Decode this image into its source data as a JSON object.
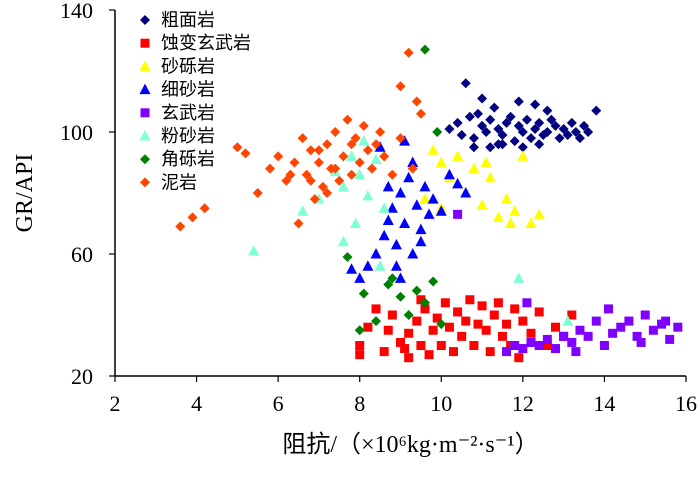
{
  "chart_data": {
    "type": "scatter",
    "title": "",
    "xlabel": "阻抗/（×10⁶kg·m⁻²·s⁻¹）",
    "ylabel": "GR/API",
    "xlim": [
      2,
      16
    ],
    "ylim": [
      20,
      140
    ],
    "xticks": [
      2,
      4,
      6,
      8,
      10,
      12,
      14,
      16
    ],
    "yticks": [
      20,
      60,
      100,
      140
    ],
    "legend_position": "top-left",
    "series": [
      {
        "name": "粗面岩",
        "color": "#000080",
        "marker": "diamond",
        "points": [
          [
            10.2,
            101
          ],
          [
            10.4,
            103
          ],
          [
            10.5,
            99
          ],
          [
            10.6,
            116
          ],
          [
            10.7,
            105
          ],
          [
            10.8,
            98
          ],
          [
            10.9,
            106
          ],
          [
            11.0,
            102
          ],
          [
            11.1,
            100
          ],
          [
            11.2,
            104
          ],
          [
            11.3,
            108
          ],
          [
            11.4,
            101
          ],
          [
            11.5,
            99
          ],
          [
            11.6,
            103
          ],
          [
            11.7,
            105
          ],
          [
            11.8,
            97
          ],
          [
            11.9,
            102
          ],
          [
            12.0,
            100
          ],
          [
            12.1,
            104
          ],
          [
            12.2,
            98
          ],
          [
            12.3,
            101
          ],
          [
            12.4,
            103
          ],
          [
            12.5,
            99
          ],
          [
            12.6,
            100
          ],
          [
            12.7,
            104
          ],
          [
            12.8,
            102
          ],
          [
            12.9,
            98
          ],
          [
            13.0,
            101
          ],
          [
            13.1,
            99
          ],
          [
            13.2,
            103
          ],
          [
            13.3,
            100
          ],
          [
            13.4,
            98
          ],
          [
            13.5,
            102
          ],
          [
            13.6,
            100
          ],
          [
            13.8,
            107
          ],
          [
            11.2,
            95
          ],
          [
            11.5,
            96
          ],
          [
            12.0,
            95
          ],
          [
            12.4,
            96
          ],
          [
            10.8,
            95
          ],
          [
            11.9,
            110
          ],
          [
            12.3,
            109
          ],
          [
            11.0,
            111
          ],
          [
            12.6,
            107
          ],
          [
            11.4,
            96
          ]
        ]
      },
      {
        "name": "蚀变玄武岩",
        "color": "#ff0000",
        "marker": "square",
        "points": [
          [
            8.0,
            30
          ],
          [
            8.0,
            27
          ],
          [
            8.2,
            36
          ],
          [
            8.4,
            42
          ],
          [
            8.6,
            28
          ],
          [
            8.7,
            35
          ],
          [
            8.8,
            40
          ],
          [
            9.0,
            31
          ],
          [
            9.1,
            29
          ],
          [
            9.2,
            34
          ],
          [
            9.4,
            38
          ],
          [
            9.5,
            30
          ],
          [
            9.6,
            42
          ],
          [
            9.7,
            27
          ],
          [
            9.8,
            35
          ],
          [
            9.9,
            39
          ],
          [
            10.0,
            30
          ],
          [
            10.1,
            44
          ],
          [
            10.2,
            36
          ],
          [
            10.3,
            28
          ],
          [
            10.4,
            41
          ],
          [
            10.5,
            33
          ],
          [
            10.6,
            38
          ],
          [
            10.7,
            45
          ],
          [
            10.8,
            30
          ],
          [
            10.9,
            37
          ],
          [
            11.0,
            43
          ],
          [
            11.1,
            35
          ],
          [
            11.2,
            28
          ],
          [
            11.3,
            40
          ],
          [
            11.4,
            44
          ],
          [
            11.5,
            33
          ],
          [
            11.6,
            37
          ],
          [
            11.7,
            30
          ],
          [
            11.8,
            42
          ],
          [
            11.9,
            26
          ],
          [
            12.0,
            38
          ],
          [
            12.2,
            34
          ],
          [
            12.4,
            41
          ],
          [
            12.6,
            30
          ],
          [
            12.8,
            36
          ],
          [
            13.0,
            33
          ],
          [
            13.2,
            40
          ],
          [
            9.2,
            26
          ],
          [
            9.5,
            45
          ]
        ]
      },
      {
        "name": "砂砾岩",
        "color": "#ffff00",
        "marker": "triangle",
        "points": [
          [
            9.8,
            94
          ],
          [
            10.0,
            90
          ],
          [
            10.2,
            85
          ],
          [
            10.4,
            92
          ],
          [
            10.6,
            80
          ],
          [
            10.8,
            88
          ],
          [
            11.0,
            76
          ],
          [
            11.2,
            85
          ],
          [
            11.4,
            72
          ],
          [
            11.6,
            78
          ],
          [
            11.8,
            74
          ],
          [
            12.0,
            92
          ],
          [
            12.2,
            70
          ],
          [
            12.4,
            73
          ],
          [
            10.0,
            75
          ],
          [
            9.6,
            78
          ],
          [
            11.1,
            90
          ],
          [
            11.7,
            70
          ]
        ]
      },
      {
        "name": "细砂岩",
        "color": "#0000ff",
        "marker": "triangle",
        "points": [
          [
            7.8,
            55
          ],
          [
            8.0,
            52
          ],
          [
            8.2,
            56
          ],
          [
            8.4,
            60
          ],
          [
            8.6,
            66
          ],
          [
            8.7,
            71
          ],
          [
            8.8,
            75
          ],
          [
            8.9,
            63
          ],
          [
            9.0,
            80
          ],
          [
            9.1,
            70
          ],
          [
            9.2,
            85
          ],
          [
            9.3,
            90
          ],
          [
            9.4,
            76
          ],
          [
            9.5,
            68
          ],
          [
            9.6,
            82
          ],
          [
            9.7,
            73
          ],
          [
            9.8,
            78
          ],
          [
            10.0,
            74
          ],
          [
            10.2,
            86
          ],
          [
            10.4,
            83
          ],
          [
            10.6,
            80
          ],
          [
            8.9,
            56
          ],
          [
            9.0,
            52
          ],
          [
            9.3,
            60
          ],
          [
            8.5,
            95
          ],
          [
            9.1,
            97
          ],
          [
            8.7,
            82
          ],
          [
            9.5,
            64
          ]
        ]
      },
      {
        "name": "玄武岩",
        "color": "#7f00ff",
        "marker": "square",
        "points": [
          [
            11.6,
            28
          ],
          [
            11.8,
            30
          ],
          [
            12.0,
            29
          ],
          [
            12.2,
            31
          ],
          [
            12.4,
            30
          ],
          [
            12.6,
            32
          ],
          [
            12.8,
            29
          ],
          [
            13.0,
            33
          ],
          [
            13.2,
            31
          ],
          [
            13.4,
            35
          ],
          [
            13.6,
            33
          ],
          [
            13.8,
            38
          ],
          [
            14.0,
            30
          ],
          [
            14.2,
            34
          ],
          [
            14.4,
            36
          ],
          [
            14.6,
            38
          ],
          [
            14.8,
            33
          ],
          [
            15.0,
            40
          ],
          [
            15.2,
            35
          ],
          [
            15.4,
            37
          ],
          [
            15.6,
            32
          ],
          [
            15.8,
            36
          ],
          [
            14.1,
            42
          ],
          [
            14.9,
            31
          ],
          [
            15.5,
            38
          ],
          [
            13.3,
            28
          ],
          [
            10.4,
            73
          ],
          [
            12.1,
            44
          ]
        ]
      },
      {
        "name": "粉砂岩",
        "color": "#7fffd4",
        "marker": "triangle",
        "points": [
          [
            5.4,
            61
          ],
          [
            6.6,
            74
          ],
          [
            7.0,
            78
          ],
          [
            7.4,
            87
          ],
          [
            7.6,
            82
          ],
          [
            7.8,
            92
          ],
          [
            8.0,
            86
          ],
          [
            8.2,
            79
          ],
          [
            8.4,
            91
          ],
          [
            8.6,
            75
          ],
          [
            7.9,
            70
          ],
          [
            8.5,
            56
          ],
          [
            7.6,
            64
          ],
          [
            11.9,
            52
          ],
          [
            13.1,
            38
          ],
          [
            8.1,
            97
          ]
        ]
      },
      {
        "name": "角砾岩",
        "color": "#008000",
        "marker": "diamond",
        "points": [
          [
            9.6,
            127
          ],
          [
            9.9,
            100
          ],
          [
            7.7,
            59
          ],
          [
            8.1,
            47
          ],
          [
            8.4,
            38
          ],
          [
            8.7,
            50
          ],
          [
            9.0,
            46
          ],
          [
            9.2,
            40
          ],
          [
            9.4,
            48
          ],
          [
            9.6,
            44
          ],
          [
            9.8,
            51
          ],
          [
            10.0,
            37
          ],
          [
            8.0,
            35
          ],
          [
            8.8,
            52
          ]
        ]
      },
      {
        "name": "泥岩",
        "color": "#ff4500",
        "marker": "diamond",
        "points": [
          [
            3.6,
            69
          ],
          [
            3.9,
            72
          ],
          [
            4.2,
            75
          ],
          [
            5.0,
            95
          ],
          [
            5.5,
            80
          ],
          [
            5.8,
            88
          ],
          [
            6.0,
            92
          ],
          [
            6.2,
            84
          ],
          [
            6.4,
            90
          ],
          [
            6.5,
            70
          ],
          [
            6.6,
            98
          ],
          [
            6.7,
            86
          ],
          [
            6.8,
            94
          ],
          [
            6.9,
            78
          ],
          [
            7.0,
            90
          ],
          [
            7.1,
            82
          ],
          [
            7.2,
            96
          ],
          [
            7.3,
            88
          ],
          [
            7.4,
            100
          ],
          [
            7.5,
            84
          ],
          [
            7.6,
            92
          ],
          [
            7.7,
            104
          ],
          [
            7.8,
            86
          ],
          [
            7.9,
            98
          ],
          [
            8.0,
            90
          ],
          [
            8.1,
            102
          ],
          [
            8.2,
            94
          ],
          [
            8.3,
            88
          ],
          [
            8.4,
            96
          ],
          [
            8.5,
            100
          ],
          [
            9.0,
            115
          ],
          [
            9.2,
            126
          ],
          [
            9.4,
            110
          ],
          [
            9.5,
            106
          ],
          [
            6.8,
            84
          ],
          [
            7.0,
            94
          ],
          [
            7.2,
            80
          ],
          [
            7.4,
            88
          ],
          [
            6.3,
            86
          ],
          [
            7.8,
            96
          ],
          [
            8.6,
            92
          ],
          [
            8.8,
            86
          ],
          [
            9.0,
            98
          ],
          [
            9.3,
            88
          ],
          [
            5.2,
            93
          ]
        ]
      }
    ]
  }
}
